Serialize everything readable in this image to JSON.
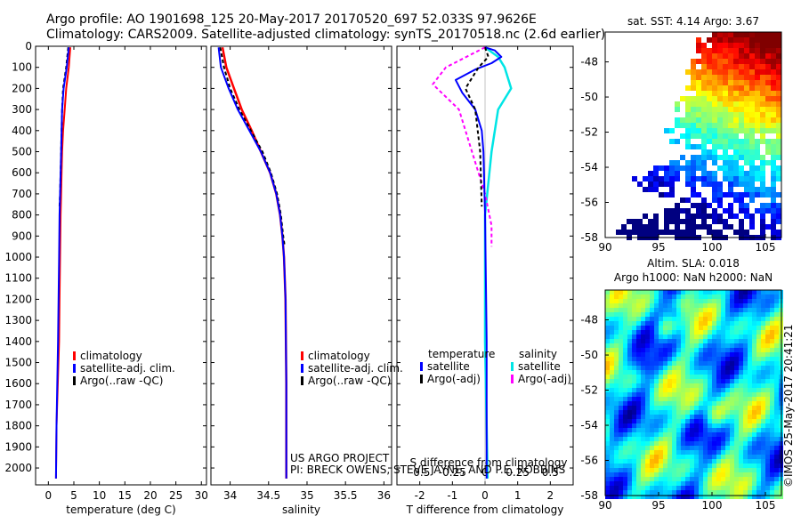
{
  "header": {
    "line1": "Argo profile: AO 1901698_125 20-May-2017 20170520_697 52.033S 97.9626E",
    "line2": "Climatology: CARS2009. Satellite-adjusted climatology: synTS_20170518.nc (2.6d earlier)"
  },
  "credits": {
    "line1": "US ARGO PROJECT",
    "line2": "PI: BRECK OWENS, STEVE JAYNE, AND P.E. ROBBINS",
    "stamp": "©IMOS 25-May-2017 20:41:21"
  },
  "colors": {
    "climatology": "#ff0000",
    "satellite": "#0000ff",
    "argo": "#000000",
    "sal_satellite": "#00e5e5",
    "sal_argo": "#ff00ff"
  },
  "chart_data": [
    {
      "id": "temperature",
      "type": "line",
      "xlabel": "temperature (deg C)",
      "ylabel": "",
      "xlim": [
        -2.5,
        31
      ],
      "ylim": [
        2080,
        0
      ],
      "xticks": [
        0,
        5,
        10,
        15,
        20,
        25,
        30
      ],
      "yticks": [
        0,
        100,
        200,
        300,
        400,
        500,
        600,
        700,
        800,
        900,
        1000,
        1100,
        1200,
        1300,
        1400,
        1500,
        1600,
        1700,
        1800,
        1900,
        2000
      ],
      "legend": [
        "climatology",
        "satellite-adj. clim.",
        "Argo(..raw -QC)"
      ],
      "series": [
        {
          "name": "climatology",
          "x": [
            4.3,
            4.0,
            3.5,
            3.2,
            2.9,
            2.7,
            2.6,
            2.5,
            2.4,
            2.3,
            2.2,
            2.1,
            1.6,
            1.5
          ],
          "y": [
            5,
            100,
            200,
            300,
            400,
            500,
            600,
            700,
            800,
            1000,
            1200,
            1400,
            1800,
            2050
          ]
        },
        {
          "name": "satellite",
          "x": [
            4.0,
            3.6,
            3.0,
            2.7,
            2.6,
            2.5,
            2.4,
            2.3,
            2.2,
            2.1,
            2.0,
            1.9,
            1.6,
            1.5
          ],
          "y": [
            5,
            100,
            200,
            300,
            400,
            500,
            600,
            700,
            800,
            1000,
            1200,
            1400,
            1800,
            2050
          ]
        },
        {
          "name": "argo",
          "x": [
            3.9,
            3.5,
            2.9,
            2.7,
            2.6,
            2.5,
            2.4,
            2.3,
            2.2
          ],
          "y": [
            5,
            100,
            200,
            300,
            400,
            500,
            600,
            700,
            760
          ]
        }
      ]
    },
    {
      "id": "salinity",
      "type": "line",
      "xlabel": "salinity",
      "ylabel": "",
      "xlim": [
        33.75,
        36.1
      ],
      "ylim": [
        2080,
        0
      ],
      "xticks": [
        34,
        34.5,
        35,
        35.5,
        36
      ],
      "legend": [
        "climatology",
        "satellite-adj. clim.",
        "Argo(..raw -QC)"
      ],
      "series": [
        {
          "name": "climatology",
          "x": [
            33.9,
            33.95,
            34.05,
            34.15,
            34.28,
            34.4,
            34.52,
            34.6,
            34.65,
            34.68,
            34.7,
            34.72,
            34.73,
            34.73
          ],
          "y": [
            5,
            100,
            200,
            300,
            400,
            500,
            600,
            700,
            800,
            900,
            1000,
            1200,
            1600,
            2050
          ]
        },
        {
          "name": "satellite",
          "x": [
            33.85,
            33.88,
            33.98,
            34.1,
            34.25,
            34.4,
            34.52,
            34.6,
            34.65,
            34.68,
            34.7,
            34.72,
            34.73,
            34.73
          ],
          "y": [
            5,
            100,
            200,
            300,
            400,
            500,
            600,
            700,
            800,
            900,
            1000,
            1200,
            1600,
            2050
          ]
        },
        {
          "name": "argo",
          "x": [
            33.87,
            33.92,
            34.0,
            34.12,
            34.27,
            34.42,
            34.53,
            34.61,
            34.66,
            34.69,
            34.71
          ],
          "y": [
            5,
            100,
            200,
            300,
            400,
            500,
            600,
            700,
            800,
            900,
            950
          ]
        }
      ]
    },
    {
      "id": "differences",
      "type": "line",
      "xlabel": "T difference from climatology",
      "top_xlabel": "S difference from climatology",
      "xlim": [
        -2.7,
        2.7
      ],
      "ylim": [
        2080,
        0
      ],
      "xticks": [
        -2,
        -1,
        0,
        1,
        2
      ],
      "top_xticks": [
        "-0.5",
        "-0.25",
        "0",
        "0.25",
        "0.5"
      ],
      "legend_headers": [
        "temperature",
        "salinity"
      ],
      "legend": [
        "satellite",
        "Argo(-adj)",
        "satellite",
        "Argo(-adj)"
      ],
      "series": [
        {
          "name": "T satellite",
          "x": [
            0,
            0.3,
            0.5,
            0.2,
            -0.3,
            -0.9,
            -0.7,
            -0.3,
            -0.1,
            -0.05,
            0,
            0.05,
            0.05
          ],
          "y": [
            5,
            20,
            50,
            80,
            110,
            160,
            220,
            300,
            400,
            500,
            800,
            1400,
            2050
          ]
        },
        {
          "name": "T argo",
          "x": [
            0,
            0.1,
            -0.2,
            -0.6,
            -0.3,
            -0.15,
            -0.1
          ],
          "y": [
            5,
            50,
            100,
            200,
            300,
            500,
            760
          ]
        },
        {
          "name": "S satellite",
          "x": [
            0,
            0.1,
            0.15,
            0.2,
            0.1,
            0.05,
            0,
            0,
            0.02
          ],
          "y": [
            5,
            50,
            100,
            200,
            300,
            500,
            800,
            1400,
            2050
          ]
        },
        {
          "name": "S argo",
          "x": [
            0,
            -0.3,
            -0.4,
            -0.2,
            -0.1,
            0,
            0.05,
            0.05
          ],
          "y": [
            5,
            100,
            180,
            300,
            500,
            700,
            850,
            950
          ]
        }
      ]
    },
    {
      "id": "sst_map",
      "type": "heatmap",
      "title": "sat. SST: 4.14  Argo: 3.67",
      "xlim": [
        90,
        106.5
      ],
      "ylim": [
        -58,
        -46.3
      ],
      "xticks": [
        90,
        95,
        100,
        105
      ],
      "yticks": [
        -48,
        -50,
        -52,
        -54,
        -56,
        -58
      ]
    },
    {
      "id": "sla_map",
      "type": "heatmap",
      "title_line1": "Altim. SLA: 0.018",
      "title_line2": "Argo h1000: NaN h2000: NaN",
      "xlim": [
        90,
        106.5
      ],
      "ylim": [
        -58,
        -46.3
      ],
      "xticks": [
        90,
        95,
        100,
        105
      ],
      "yticks": [
        -48,
        -50,
        -52,
        -54,
        -56,
        -58
      ]
    }
  ]
}
